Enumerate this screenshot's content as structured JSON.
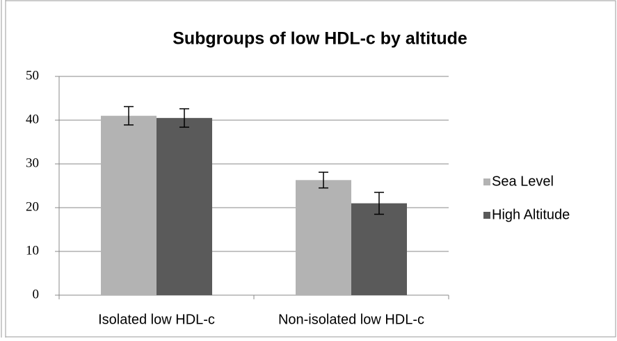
{
  "chart_data": {
    "type": "bar",
    "title": "Subgroups of low HDL-c by altitude",
    "categories": [
      "Isolated low HDL-c",
      "Non-isolated low HDL-c"
    ],
    "series": [
      {
        "name": "Sea Level",
        "color": "#b3b3b3",
        "values": [
          41,
          26.3
        ],
        "errors": [
          2.1,
          1.8
        ]
      },
      {
        "name": "High Altitude",
        "color": "#5a5a5a",
        "values": [
          40.5,
          21
        ],
        "errors": [
          2.1,
          2.5
        ]
      }
    ],
    "ylim": [
      0,
      50
    ],
    "yticks": [
      0,
      10,
      20,
      30,
      40,
      50
    ],
    "grid": true,
    "legend": "right"
  }
}
